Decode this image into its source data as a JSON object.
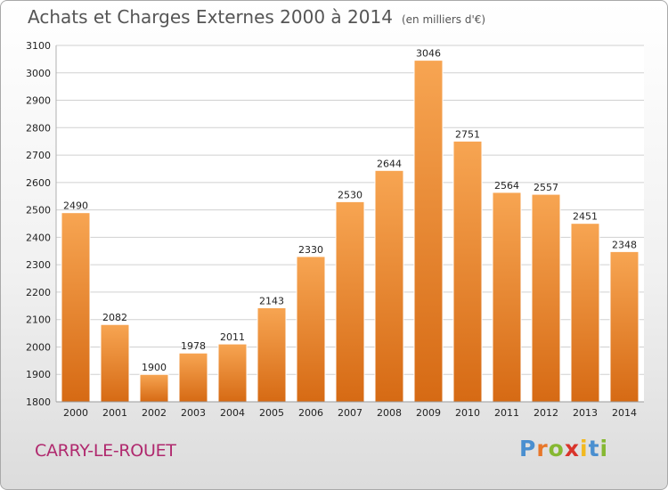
{
  "header": {
    "title": "Achats et Charges Externes 2000 à 2014",
    "unit": "(en milliers d'€)"
  },
  "footer": {
    "city": "CARRY-LE-ROUET",
    "logo": "Proxiti"
  },
  "colors": {
    "bar_top": "#f7a552",
    "bar_bottom": "#d66a14",
    "grid": "#d0d0d0",
    "title": "#555555",
    "city": "#b0296e",
    "logo_letters": [
      "#4a8fd0",
      "#e8772a",
      "#86b832",
      "#d9342b",
      "#f2b91e",
      "#4a8fd0",
      "#86b832"
    ]
  },
  "chart_data": {
    "type": "bar",
    "title": "Achats et Charges Externes 2000 à 2014",
    "subtitle": "(en milliers d'€)",
    "categories": [
      "2000",
      "2001",
      "2002",
      "2003",
      "2004",
      "2005",
      "2006",
      "2007",
      "2008",
      "2009",
      "2010",
      "2011",
      "2012",
      "2013",
      "2014"
    ],
    "values": [
      2490,
      2082,
      1900,
      1978,
      2011,
      2143,
      2330,
      2530,
      2644,
      3046,
      2751,
      2564,
      2557,
      2451,
      2348
    ],
    "ylim": [
      1800,
      3100
    ],
    "yticks": [
      1800,
      1900,
      2000,
      2100,
      2200,
      2300,
      2400,
      2500,
      2600,
      2700,
      2800,
      2900,
      3000,
      3100
    ],
    "grid": true,
    "legend": false
  }
}
